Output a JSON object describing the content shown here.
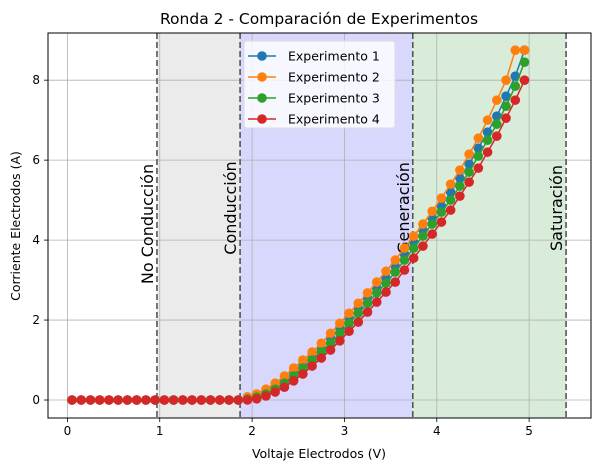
{
  "chart_data": {
    "type": "line",
    "title": "Ronda 2 - Comparación de Experimentos",
    "xlabel": "Voltaje Electrodos (V)",
    "ylabel": "Corriente Electrodos (A)",
    "xlim": [
      -0.21,
      5.67
    ],
    "ylim": [
      -0.45,
      9.18
    ],
    "xticks": [
      0,
      1,
      2,
      3,
      4,
      5
    ],
    "yticks": [
      0,
      2,
      4,
      6,
      8
    ],
    "grid": true,
    "legend_placement": "top-center",
    "x": [
      0.05,
      0.15,
      0.25,
      0.35,
      0.45,
      0.55,
      0.65,
      0.75,
      0.85,
      0.95,
      1.05,
      1.15,
      1.25,
      1.35,
      1.45,
      1.55,
      1.65,
      1.75,
      1.85,
      1.95,
      2.05,
      2.15,
      2.25,
      2.35,
      2.45,
      2.55,
      2.65,
      2.75,
      2.85,
      2.95,
      3.05,
      3.15,
      3.25,
      3.35,
      3.45,
      3.55,
      3.65,
      3.75,
      3.85,
      3.95,
      4.05,
      4.15,
      4.25,
      4.35,
      4.45,
      4.55,
      4.65,
      4.75,
      4.85,
      4.95
    ],
    "series": [
      {
        "name": "Experimento 1",
        "color": "#1f77b4",
        "values": [
          0,
          0,
          0,
          0,
          0,
          0,
          0,
          0,
          0,
          0,
          0,
          0,
          0,
          0,
          0,
          0,
          0,
          0,
          0,
          0.05,
          0.1,
          0.2,
          0.35,
          0.5,
          0.7,
          0.9,
          1.1,
          1.3,
          1.55,
          1.8,
          2.05,
          2.3,
          2.55,
          2.8,
          3.05,
          3.35,
          3.65,
          3.95,
          4.25,
          4.55,
          4.85,
          5.2,
          5.55,
          5.9,
          6.3,
          6.7,
          7.1,
          7.6,
          8.1,
          8.75
        ]
      },
      {
        "name": "Experimento 2",
        "color": "#ff7f0e",
        "values": [
          0,
          0,
          0,
          0,
          0,
          0,
          0,
          0,
          0,
          0,
          0,
          0,
          0,
          0,
          0,
          0,
          0,
          0,
          0,
          0.08,
          0.15,
          0.27,
          0.42,
          0.6,
          0.8,
          1.0,
          1.2,
          1.42,
          1.67,
          1.92,
          2.17,
          2.42,
          2.68,
          2.95,
          3.22,
          3.5,
          3.8,
          4.1,
          4.4,
          4.72,
          5.05,
          5.4,
          5.75,
          6.15,
          6.55,
          7.0,
          7.5,
          8.0,
          8.75,
          8.75
        ]
      },
      {
        "name": "Experimento 3",
        "color": "#2ca02c",
        "values": [
          0,
          0,
          0,
          0,
          0,
          0,
          0,
          0,
          0,
          0,
          0,
          0,
          0,
          0,
          0,
          0,
          0,
          0,
          0,
          0.02,
          0.07,
          0.15,
          0.27,
          0.42,
          0.6,
          0.8,
          1.0,
          1.2,
          1.42,
          1.67,
          1.92,
          2.17,
          2.42,
          2.68,
          2.92,
          3.2,
          3.5,
          3.8,
          4.1,
          4.4,
          4.7,
          5.0,
          5.35,
          5.7,
          6.1,
          6.5,
          6.9,
          7.35,
          7.85,
          8.45
        ]
      },
      {
        "name": "Experimento 4",
        "color": "#d62728",
        "values": [
          0,
          0,
          0,
          0,
          0,
          0,
          0,
          0,
          0,
          0,
          0,
          0,
          0,
          0,
          0,
          0,
          0,
          0,
          0,
          0,
          0.03,
          0.1,
          0.2,
          0.32,
          0.48,
          0.65,
          0.85,
          1.05,
          1.25,
          1.48,
          1.72,
          1.95,
          2.2,
          2.45,
          2.7,
          2.95,
          3.25,
          3.55,
          3.85,
          4.15,
          4.45,
          4.75,
          5.1,
          5.45,
          5.8,
          6.2,
          6.6,
          7.05,
          7.5,
          8.0
        ]
      }
    ],
    "regions": [
      {
        "label": "Conducción",
        "from": 0.97,
        "to": 1.87,
        "color": "#ebebeb"
      },
      {
        "label": "Generación",
        "from": 1.87,
        "to": 3.74,
        "color": "#d8d8fc"
      },
      {
        "label": "Saturación",
        "from": 3.74,
        "to": 5.4,
        "color": "#d9ecd9"
      }
    ],
    "annotations": [
      {
        "text": "No Conducción",
        "x": 0.97
      },
      {
        "text": "Conducción",
        "x": 1.87
      },
      {
        "text": "Generación",
        "x": 3.74
      },
      {
        "text": "Saturación",
        "x": 5.4
      }
    ]
  }
}
